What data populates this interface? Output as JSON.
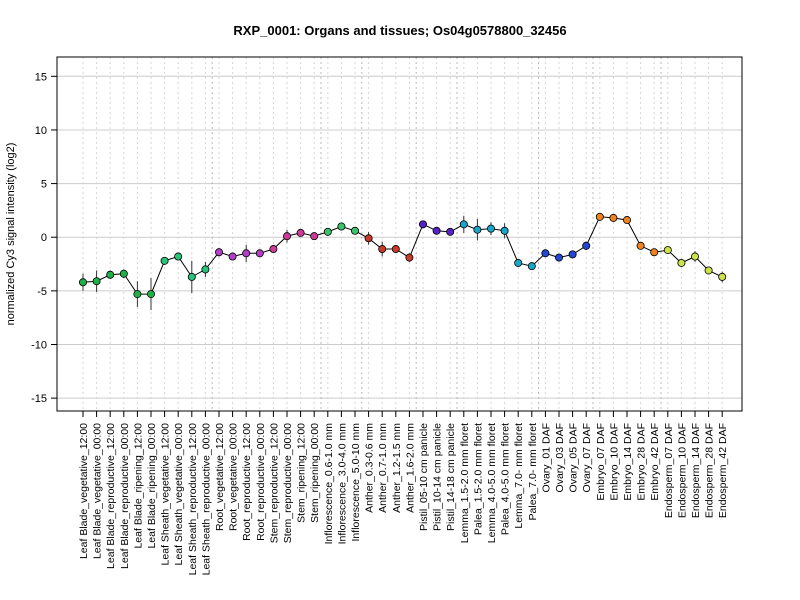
{
  "chart_data": {
    "type": "scatter",
    "title": "RXP_0001: Organs and tissues; Os04g0578800_32456",
    "ylabel": "normalized Cy3 signal intensity (log2)",
    "xlabel": "",
    "ylim": [
      -16.2,
      16.8
    ],
    "yticks": [
      -15,
      -10,
      -5,
      0,
      5,
      10,
      15
    ],
    "grid": true,
    "categories": [
      "Leaf Blade_vegetative_12:00",
      "Leaf Blade_vegetative_00:00",
      "Leaf Blade_reproductive_12:00",
      "Leaf Blade_reproductive_00:00",
      "Leaf Blade_ripening_12:00",
      "Leaf Blade_ripening_00:00",
      "Leaf Sheath_vegetative_12:00",
      "Leaf Sheath_vegetative_00:00",
      "Leaf Sheath_reproductive_12:00",
      "Leaf Sheath_reproductive_00:00",
      "Root_vegetative_12:00",
      "Root_vegetative_00:00",
      "Root_reproductive_12:00",
      "Root_reproductive_00:00",
      "Stem_reproductive_12:00",
      "Stem_reproductive_00:00",
      "Stem_ripening_12:00",
      "Stem_ripening_00:00",
      "Inflorescence_0.6-1.0 mm",
      "Inflorescence_3.0-4.0 mm",
      "Inflorescence_5.0-10 mm",
      "Anther_0.3-0.6 mm",
      "Anther_0.7-1.0 mm",
      "Anther_1.2-1.5 mm",
      "Anther_1.6-2.0 mm",
      "Pistil_05-10 cm panicle",
      "Pistil_10-14 cm panicle",
      "Pistil_14-18 cm panicle",
      "Lemma_1.5-2.0 mm floret",
      "Palea_1.5-2.0 mm floret",
      "Lemma_4.0-5.0 mm floret",
      "Palea_4.0-5.0 mm floret",
      "Lemma_7.0- mm floret",
      "Palea_7.0- mm floret",
      "Ovary_01 DAF",
      "Ovary_03 DAF",
      "Ovary_05 DAF",
      "Ovary_07 DAF",
      "Embryo_07 DAF",
      "Embryo_10 DAF",
      "Embryo_14 DAF",
      "Embryo_28 DAF",
      "Embryo_42 DAF",
      "Endosperm_07 DAF",
      "Endosperm_10 DAF",
      "Endosperm_14 DAF",
      "Endosperm_28 DAF",
      "Endosperm_42 DAF"
    ],
    "values": [
      -4.2,
      -4.1,
      -3.5,
      -3.4,
      -5.3,
      -5.3,
      -2.2,
      -1.8,
      -3.7,
      -3.0,
      -1.4,
      -1.8,
      -1.5,
      -1.5,
      -1.1,
      0.1,
      0.4,
      0.1,
      0.5,
      1.0,
      0.6,
      -0.1,
      -1.1,
      -1.1,
      -1.9,
      1.2,
      0.6,
      0.5,
      1.2,
      0.7,
      0.8,
      0.6,
      -2.4,
      -2.7,
      -1.5,
      -1.9,
      -1.6,
      -0.8,
      1.9,
      1.8,
      1.6,
      -0.8,
      -1.4,
      -1.2,
      -2.4,
      -1.8,
      -3.1,
      -3.7
    ],
    "errors": [
      0.8,
      1.0,
      0.4,
      0.4,
      1.2,
      1.5,
      0.2,
      0.3,
      1.5,
      0.7,
      0.4,
      0.3,
      0.8,
      0.3,
      0.3,
      0.6,
      0.2,
      0.1,
      0.2,
      0.2,
      0.3,
      0.6,
      0.7,
      0.2,
      0.4,
      0.2,
      0.2,
      0.2,
      0.8,
      1.0,
      0.6,
      0.7,
      0.3,
      0.2,
      0.3,
      0.3,
      0.3,
      0.4,
      0.2,
      0.2,
      0.3,
      0.2,
      0.3,
      0.3,
      0.2,
      0.5,
      0.3,
      0.5
    ],
    "colors": [
      "#1fb04a",
      "#1fb04a",
      "#1fb04a",
      "#1fb04a",
      "#1fb04a",
      "#1fb04a",
      "#27c47a",
      "#27c47a",
      "#27c47a",
      "#27c47a",
      "#b23fc8",
      "#b23fc8",
      "#b23fc8",
      "#b23fc8",
      "#cc3b9a",
      "#cc3b9a",
      "#cc3b9a",
      "#cc3b9a",
      "#3cc36a",
      "#3cc36a",
      "#3cc36a",
      "#c83a2c",
      "#c83a2c",
      "#c83a2c",
      "#c83a2c",
      "#5522c6",
      "#5522c6",
      "#5522c6",
      "#1aa6c8",
      "#1aa6c8",
      "#1aa6c8",
      "#1aa6c8",
      "#1aa6c8",
      "#1aa6c8",
      "#2446d0",
      "#2446d0",
      "#2446d0",
      "#2446d0",
      "#ee8420",
      "#ee8420",
      "#ee8420",
      "#ee8420",
      "#ee8420",
      "#cde24a",
      "#cde24a",
      "#cde24a",
      "#cde24a",
      "#cde24a"
    ],
    "separators_after": [
      9,
      17,
      20,
      24,
      27,
      33,
      37,
      42
    ]
  }
}
